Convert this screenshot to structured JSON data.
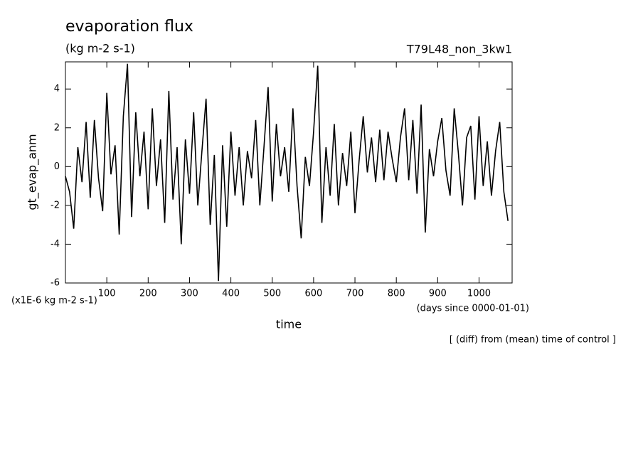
{
  "chart_data": {
    "type": "line",
    "title": "evaporation flux",
    "subtitle": "(kg m-2 s-1)",
    "run_label": "T79L48_non_3kw1",
    "y_label": "gt_evap_anm",
    "y_unit": "(x1E-6 kg m-2 s-1)",
    "x_label": "time",
    "x_unit": "(days since 0000-01-01)",
    "annotation": "[ (diff) from (mean) time of control ]",
    "xlim": [
      0,
      1080
    ],
    "ylim": [
      -6,
      5.4
    ],
    "xticks": [
      100,
      200,
      300,
      400,
      500,
      600,
      700,
      800,
      900,
      1000
    ],
    "yticks": [
      -6,
      -4,
      -2,
      0,
      2,
      4
    ],
    "color": "#000000",
    "x": [
      0,
      10,
      20,
      30,
      40,
      50,
      60,
      70,
      80,
      90,
      100,
      110,
      120,
      130,
      140,
      150,
      160,
      170,
      180,
      190,
      200,
      210,
      220,
      230,
      240,
      250,
      260,
      270,
      280,
      290,
      300,
      310,
      320,
      330,
      340,
      350,
      360,
      370,
      380,
      390,
      400,
      410,
      420,
      430,
      440,
      450,
      460,
      470,
      480,
      490,
      500,
      510,
      520,
      530,
      540,
      550,
      560,
      570,
      580,
      590,
      600,
      610,
      620,
      630,
      640,
      650,
      660,
      670,
      680,
      690,
      700,
      710,
      720,
      730,
      740,
      750,
      760,
      770,
      780,
      790,
      800,
      810,
      820,
      830,
      840,
      850,
      860,
      870,
      880,
      890,
      900,
      910,
      920,
      930,
      940,
      950,
      960,
      970,
      980,
      990,
      1000,
      1010,
      1020,
      1030,
      1040,
      1050,
      1060,
      1070
    ],
    "values": [
      -0.5,
      -1.3,
      -3.2,
      1.0,
      -0.8,
      2.3,
      -1.6,
      2.4,
      -0.6,
      -2.3,
      3.8,
      -0.4,
      1.1,
      -3.5,
      2.6,
      5.3,
      -2.6,
      2.8,
      -0.5,
      1.8,
      -2.2,
      3.0,
      -1.0,
      1.4,
      -2.9,
      3.9,
      -1.7,
      1.0,
      -4.0,
      1.4,
      -1.4,
      2.8,
      -2.0,
      0.8,
      3.5,
      -3.0,
      0.6,
      -5.9,
      1.1,
      -3.1,
      1.8,
      -1.5,
      1.0,
      -2.0,
      0.8,
      -0.6,
      2.4,
      -2.0,
      1.0,
      4.1,
      -1.8,
      2.2,
      -0.5,
      1.0,
      -1.3,
      3.0,
      -1.0,
      -3.7,
      0.5,
      -1.0,
      1.8,
      5.2,
      -2.9,
      1.0,
      -1.5,
      2.2,
      -2.0,
      0.7,
      -1.0,
      1.8,
      -2.4,
      0.3,
      2.6,
      -0.3,
      1.5,
      -0.8,
      1.9,
      -0.7,
      1.8,
      0.4,
      -0.8,
      1.5,
      3.0,
      -0.7,
      2.4,
      -1.4,
      3.2,
      -3.4,
      0.9,
      -0.5,
      1.3,
      2.5,
      -0.2,
      -1.5,
      3.0,
      0.7,
      -2.0,
      1.5,
      2.1,
      -1.7,
      2.6,
      -1.0,
      1.3,
      -1.5,
      0.8,
      2.3,
      -1.3,
      -2.8
    ]
  }
}
